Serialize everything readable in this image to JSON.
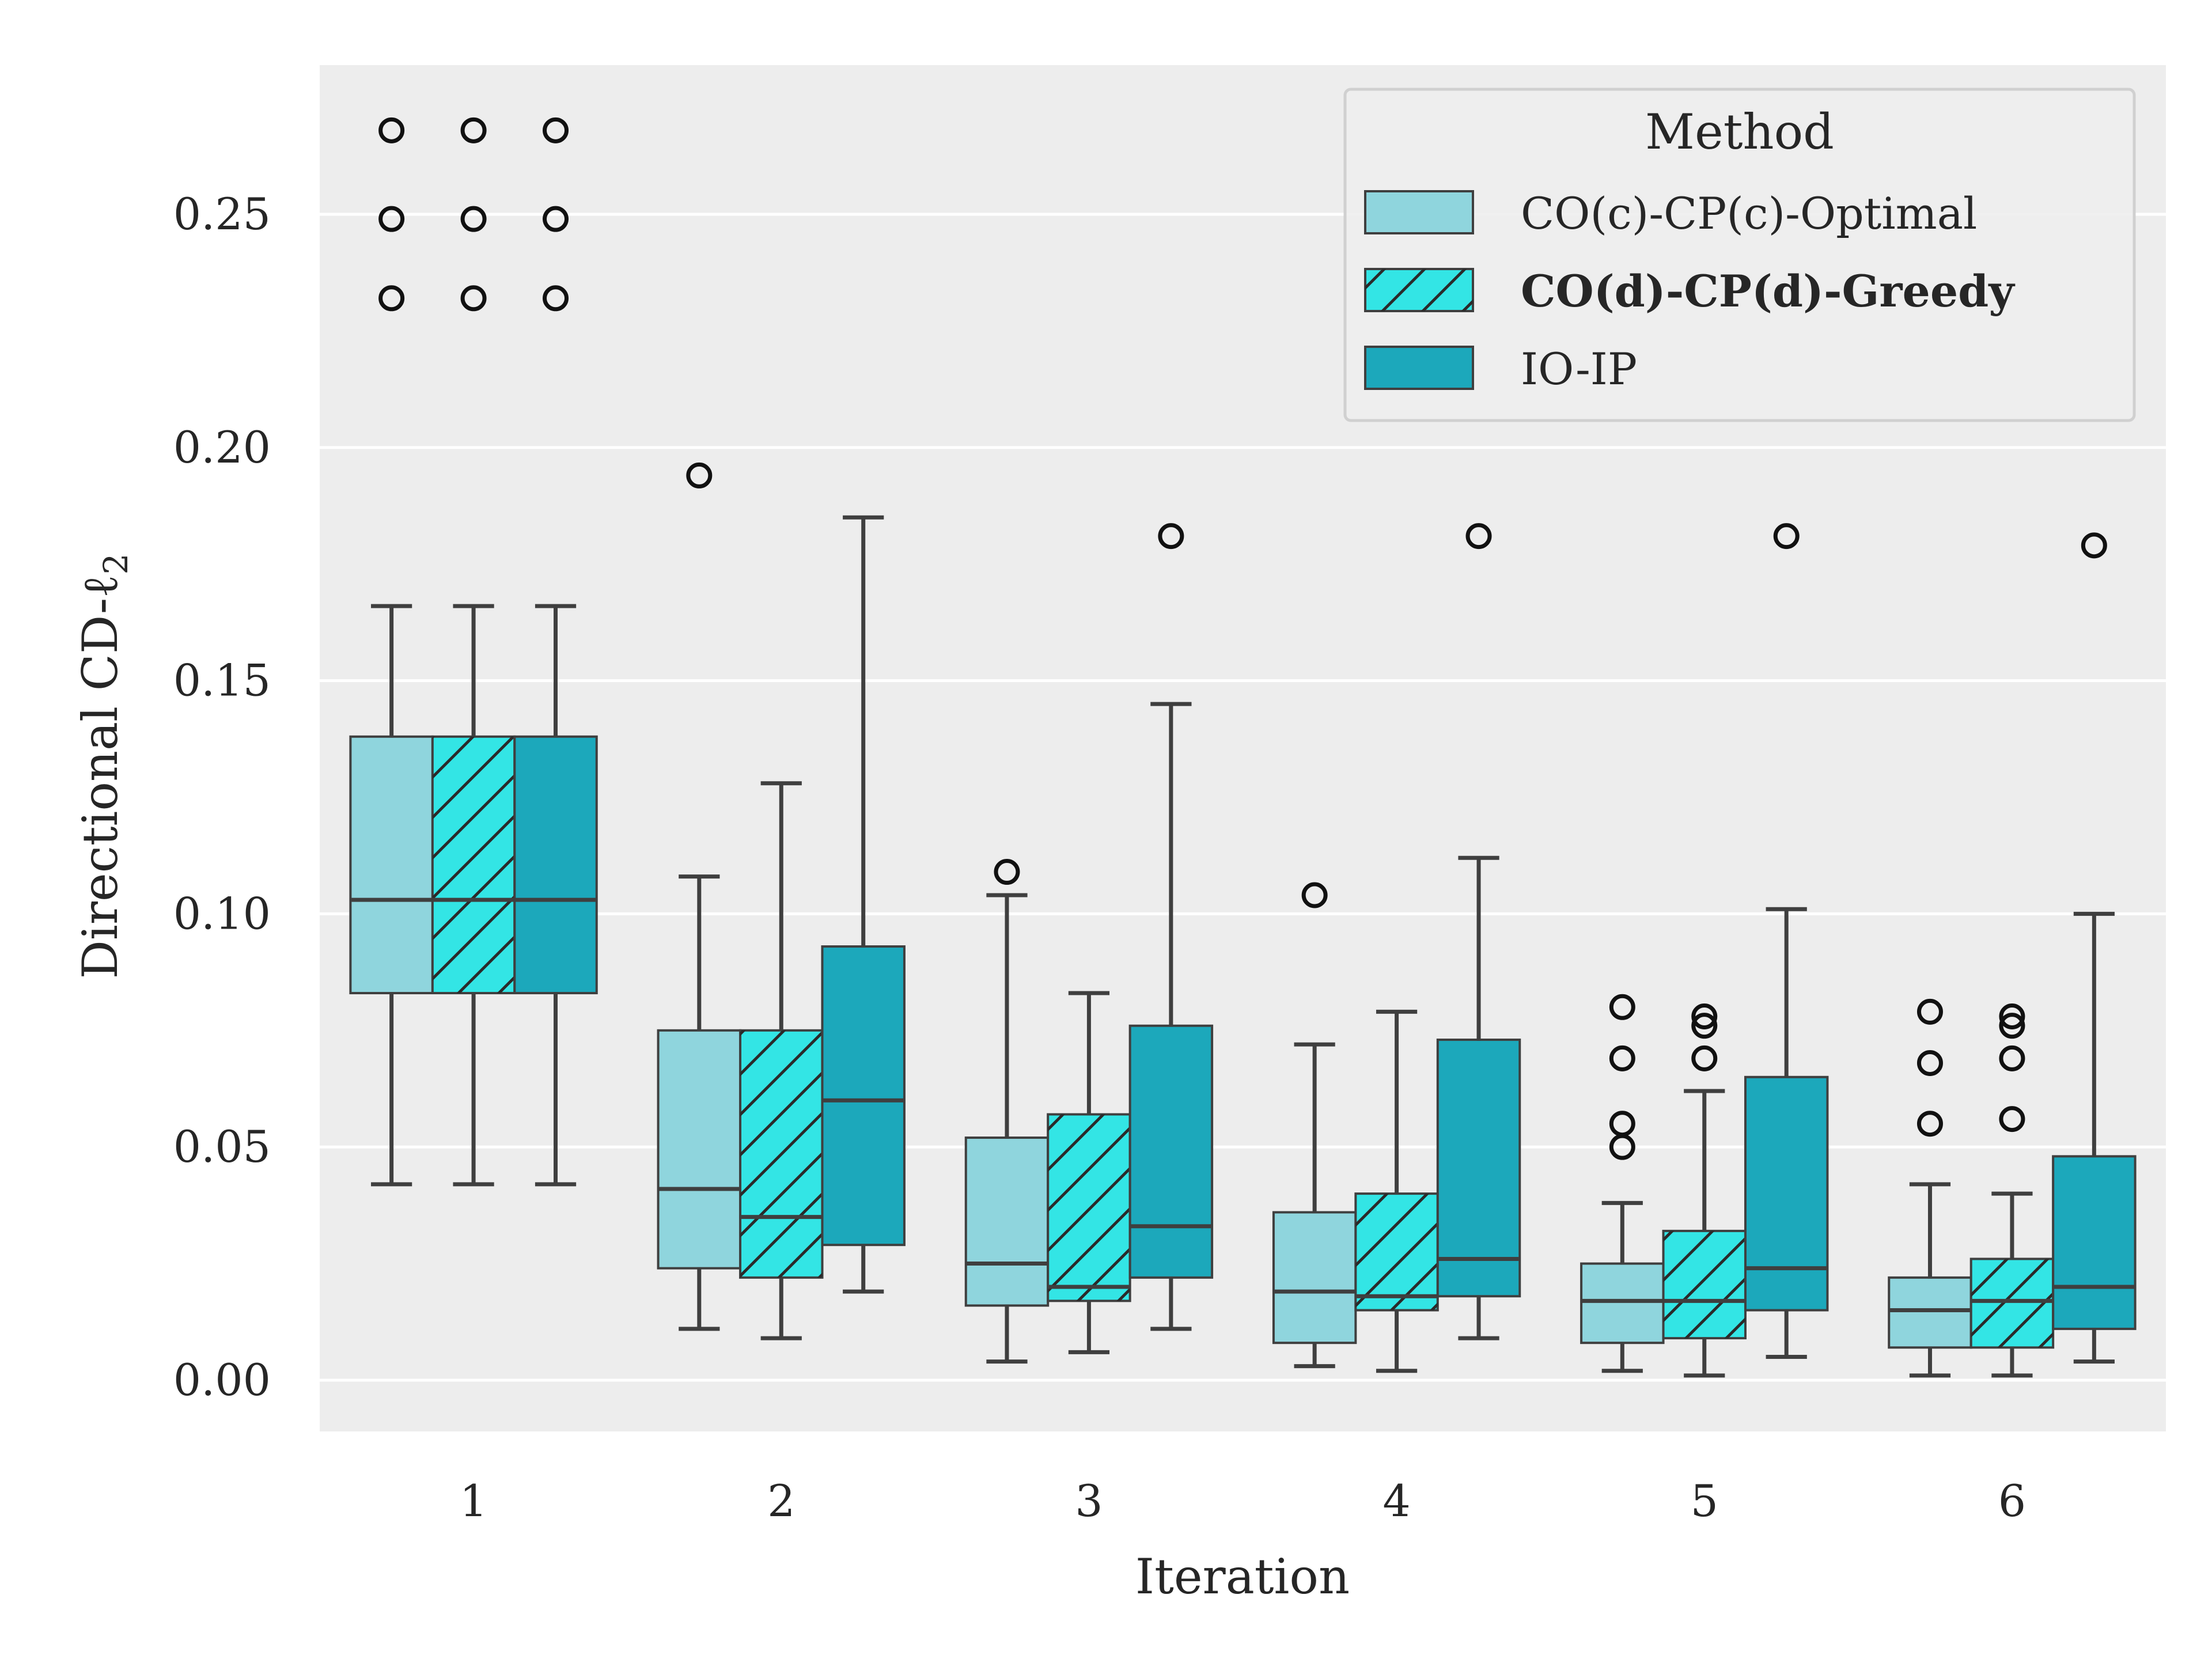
{
  "chart_data": {
    "type": "box",
    "title": "",
    "xlabel": "Iteration",
    "ylabel": "Directional CD-ℓ",
    "ylabel_subscript": "2",
    "ylim": [
      -0.011,
      0.282
    ],
    "yticks": [
      0.0,
      0.05,
      0.1,
      0.15,
      0.2,
      0.25
    ],
    "ytick_labels": [
      "0.00",
      "0.05",
      "0.10",
      "0.15",
      "0.20",
      "0.25"
    ],
    "categories": [
      "1",
      "2",
      "3",
      "4",
      "5",
      "6"
    ],
    "grid": "horizontal",
    "background": "#ededed",
    "legend": {
      "title": "Method",
      "position": "top-right",
      "highlighted": "CO(d)-CP(d)-Greedy"
    },
    "series": [
      {
        "name": "CO(c)-CP(c)-Optimal",
        "color": "#8fd5dd",
        "hatch": false,
        "boxes": [
          {
            "whislo": 0.042,
            "q1": 0.083,
            "med": 0.103,
            "q3": 0.138,
            "whishi": 0.166,
            "fliers": [
              0.232,
              0.249,
              0.268
            ]
          },
          {
            "whislo": 0.011,
            "q1": 0.024,
            "med": 0.041,
            "q3": 0.075,
            "whishi": 0.108,
            "fliers": [
              0.194
            ]
          },
          {
            "whislo": 0.004,
            "q1": 0.016,
            "med": 0.025,
            "q3": 0.052,
            "whishi": 0.104,
            "fliers": [
              0.109
            ]
          },
          {
            "whislo": 0.003,
            "q1": 0.008,
            "med": 0.019,
            "q3": 0.036,
            "whishi": 0.072,
            "fliers": [
              0.104
            ]
          },
          {
            "whislo": 0.002,
            "q1": 0.008,
            "med": 0.017,
            "q3": 0.025,
            "whishi": 0.038,
            "fliers": [
              0.05,
              0.055,
              0.069,
              0.08
            ]
          },
          {
            "whislo": 0.001,
            "q1": 0.007,
            "med": 0.015,
            "q3": 0.022,
            "whishi": 0.042,
            "fliers": [
              0.055,
              0.068,
              0.079
            ]
          }
        ]
      },
      {
        "name": "CO(d)-CP(d)-Greedy",
        "color": "#33e5e5",
        "hatch": true,
        "boxes": [
          {
            "whislo": 0.042,
            "q1": 0.083,
            "med": 0.103,
            "q3": 0.138,
            "whishi": 0.166,
            "fliers": [
              0.232,
              0.249,
              0.268
            ]
          },
          {
            "whislo": 0.009,
            "q1": 0.022,
            "med": 0.035,
            "q3": 0.075,
            "whishi": 0.128,
            "fliers": []
          },
          {
            "whislo": 0.006,
            "q1": 0.017,
            "med": 0.02,
            "q3": 0.057,
            "whishi": 0.083,
            "fliers": []
          },
          {
            "whislo": 0.002,
            "q1": 0.015,
            "med": 0.018,
            "q3": 0.04,
            "whishi": 0.079,
            "fliers": []
          },
          {
            "whislo": 0.001,
            "q1": 0.009,
            "med": 0.017,
            "q3": 0.032,
            "whishi": 0.062,
            "fliers": [
              0.069,
              0.076,
              0.078
            ]
          },
          {
            "whislo": 0.001,
            "q1": 0.007,
            "med": 0.017,
            "q3": 0.026,
            "whishi": 0.04,
            "fliers": [
              0.056,
              0.069,
              0.076,
              0.078
            ]
          }
        ]
      },
      {
        "name": "IO-IP",
        "color": "#1ca8bb",
        "hatch": false,
        "boxes": [
          {
            "whislo": 0.042,
            "q1": 0.083,
            "med": 0.103,
            "q3": 0.138,
            "whishi": 0.166,
            "fliers": [
              0.232,
              0.249,
              0.268
            ]
          },
          {
            "whislo": 0.019,
            "q1": 0.029,
            "med": 0.06,
            "q3": 0.093,
            "whishi": 0.185,
            "fliers": []
          },
          {
            "whislo": 0.011,
            "q1": 0.022,
            "med": 0.033,
            "q3": 0.076,
            "whishi": 0.145,
            "fliers": [
              0.181
            ]
          },
          {
            "whislo": 0.009,
            "q1": 0.018,
            "med": 0.026,
            "q3": 0.073,
            "whishi": 0.112,
            "fliers": [
              0.181
            ]
          },
          {
            "whislo": 0.005,
            "q1": 0.015,
            "med": 0.024,
            "q3": 0.065,
            "whishi": 0.101,
            "fliers": [
              0.181
            ]
          },
          {
            "whislo": 0.004,
            "q1": 0.011,
            "med": 0.02,
            "q3": 0.048,
            "whishi": 0.1,
            "fliers": [
              0.179
            ]
          }
        ]
      }
    ]
  }
}
